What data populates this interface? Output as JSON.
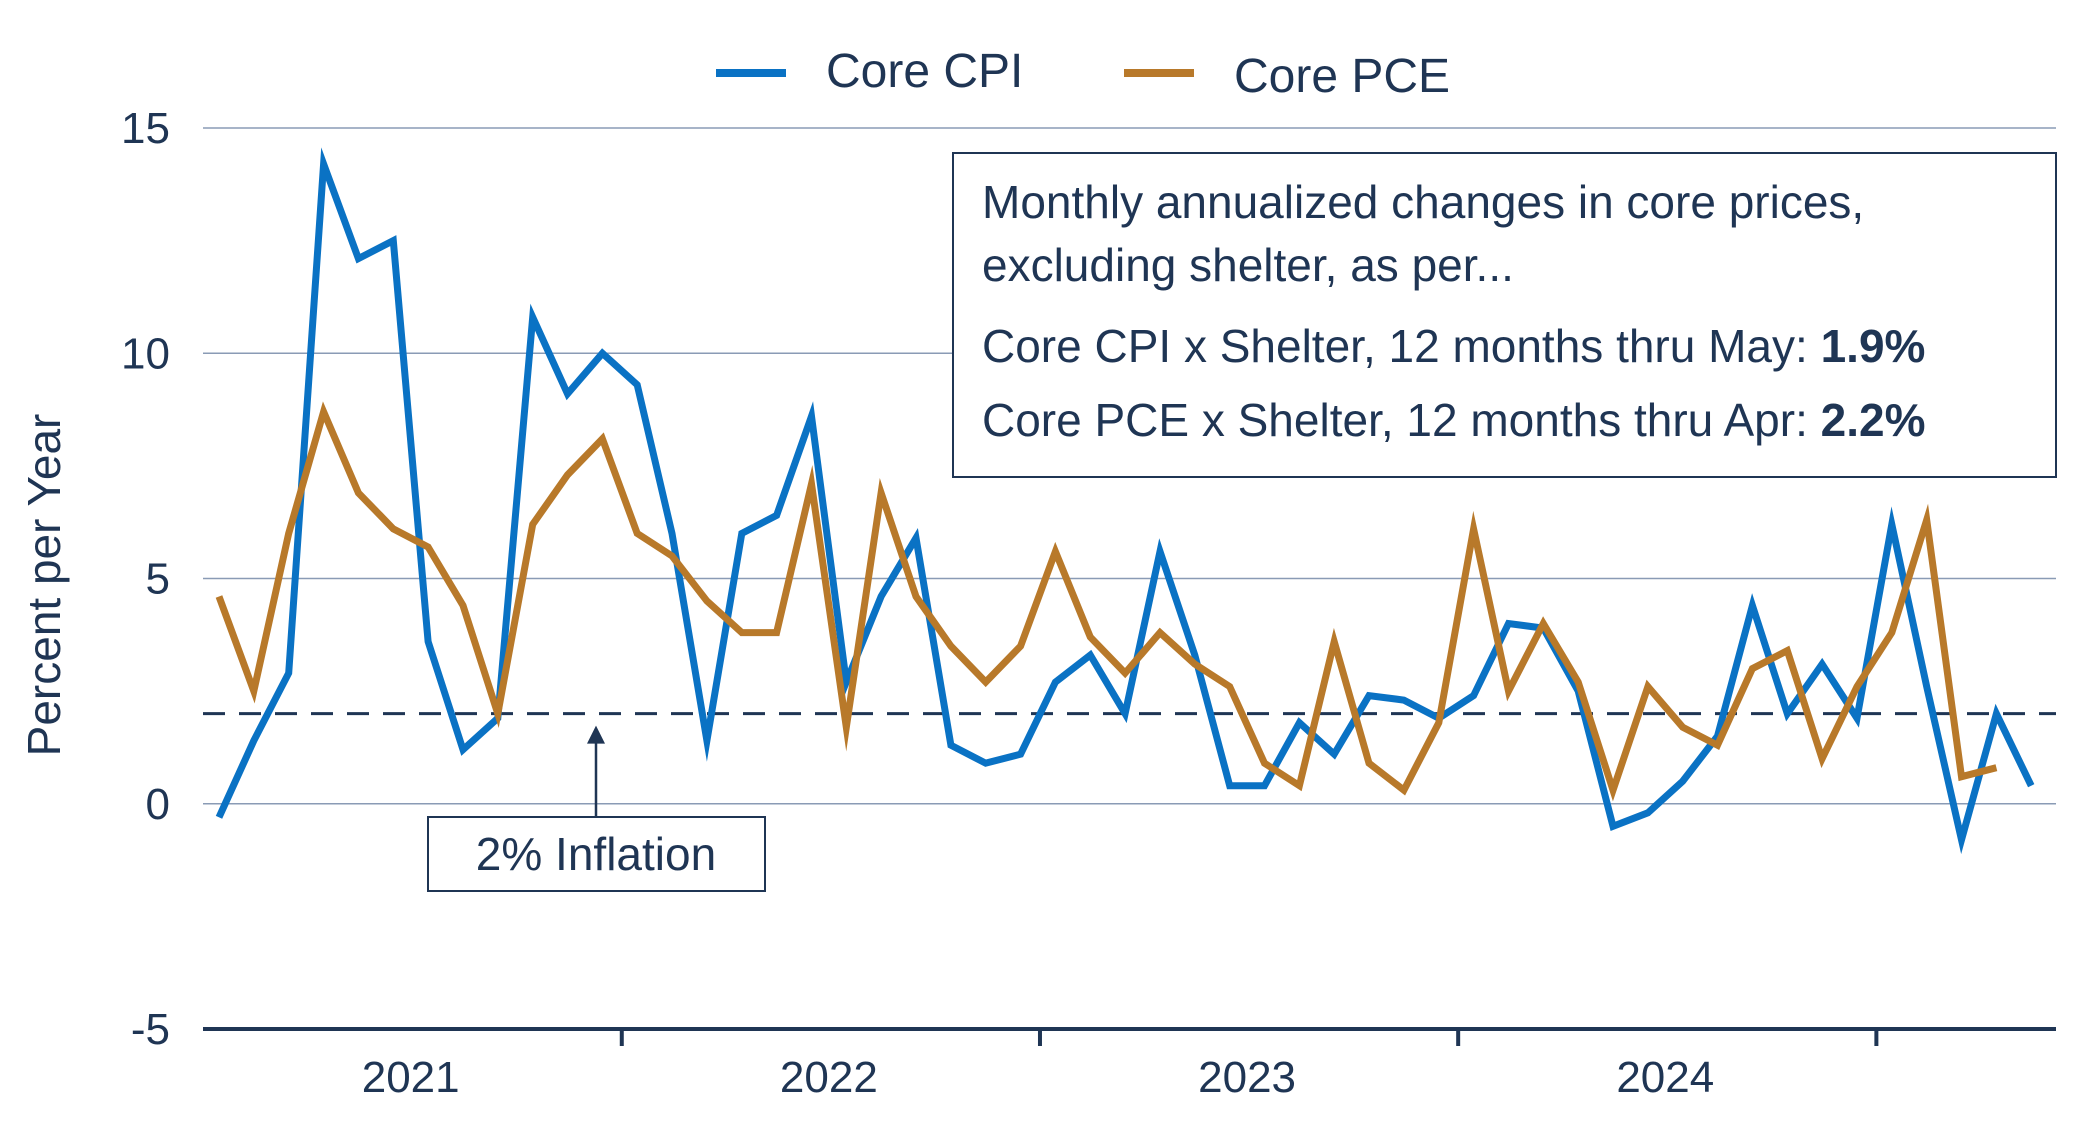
{
  "chart_data": {
    "type": "line",
    "title": "",
    "xlabel": "",
    "ylabel": "Percent per Year",
    "ylim": [
      -5,
      15
    ],
    "yticks": [
      15,
      10,
      5,
      0,
      -5
    ],
    "grid": true,
    "legend_position": "top-center",
    "x_tick_labels": [
      "2021",
      "2022",
      "2023",
      "2024"
    ],
    "months_per_year": 12,
    "series": [
      {
        "name": "Core CPI",
        "color": "#0a72c4",
        "values": [
          -0.3,
          1.4,
          2.9,
          14.2,
          12.1,
          12.5,
          3.6,
          1.2,
          1.9,
          10.8,
          9.1,
          10.0,
          9.3,
          6.0,
          1.4,
          6.0,
          6.4,
          8.6,
          2.7,
          4.6,
          5.9,
          1.3,
          0.9,
          1.1,
          2.7,
          3.3,
          2.0,
          5.6,
          3.3,
          0.4,
          0.4,
          1.8,
          1.1,
          2.4,
          2.3,
          1.9,
          2.4,
          4.0,
          3.9,
          2.5,
          -0.5,
          -0.2,
          0.5,
          1.5,
          4.4,
          2.0,
          3.1,
          1.9,
          6.2,
          2.6,
          -0.8,
          2.0,
          0.4
        ]
      },
      {
        "name": "Core PCE",
        "color": "#b8792a",
        "values": [
          4.6,
          2.5,
          6.0,
          8.7,
          6.9,
          6.1,
          5.7,
          4.4,
          2.0,
          6.2,
          7.3,
          8.1,
          6.0,
          5.5,
          4.5,
          3.8,
          3.8,
          7.1,
          1.7,
          6.9,
          4.6,
          3.5,
          2.7,
          3.5,
          5.6,
          3.7,
          2.9,
          3.8,
          3.1,
          2.6,
          0.9,
          0.4,
          3.6,
          0.9,
          0.3,
          1.8,
          6.1,
          2.5,
          4.0,
          2.7,
          0.3,
          2.6,
          1.7,
          1.3,
          3.0,
          3.4,
          1.0,
          2.6,
          3.8,
          6.3,
          0.6,
          0.8
        ]
      }
    ],
    "reference_line": {
      "value": 2,
      "label": "2% Inflation"
    },
    "annotation": {
      "line1": "Monthly annualized changes in core prices,",
      "line2": "excluding shelter, as per...",
      "cpi_prefix": "Core CPI x Shelter, 12 months thru May: ",
      "cpi_value": "1.9%",
      "pce_prefix": "Core PCE x Shelter, 12 months thru Apr: ",
      "pce_value": "2.2%"
    }
  },
  "colors": {
    "text": "#1f3554",
    "axis": "#1f3554",
    "grid": "#8a9bb5"
  }
}
